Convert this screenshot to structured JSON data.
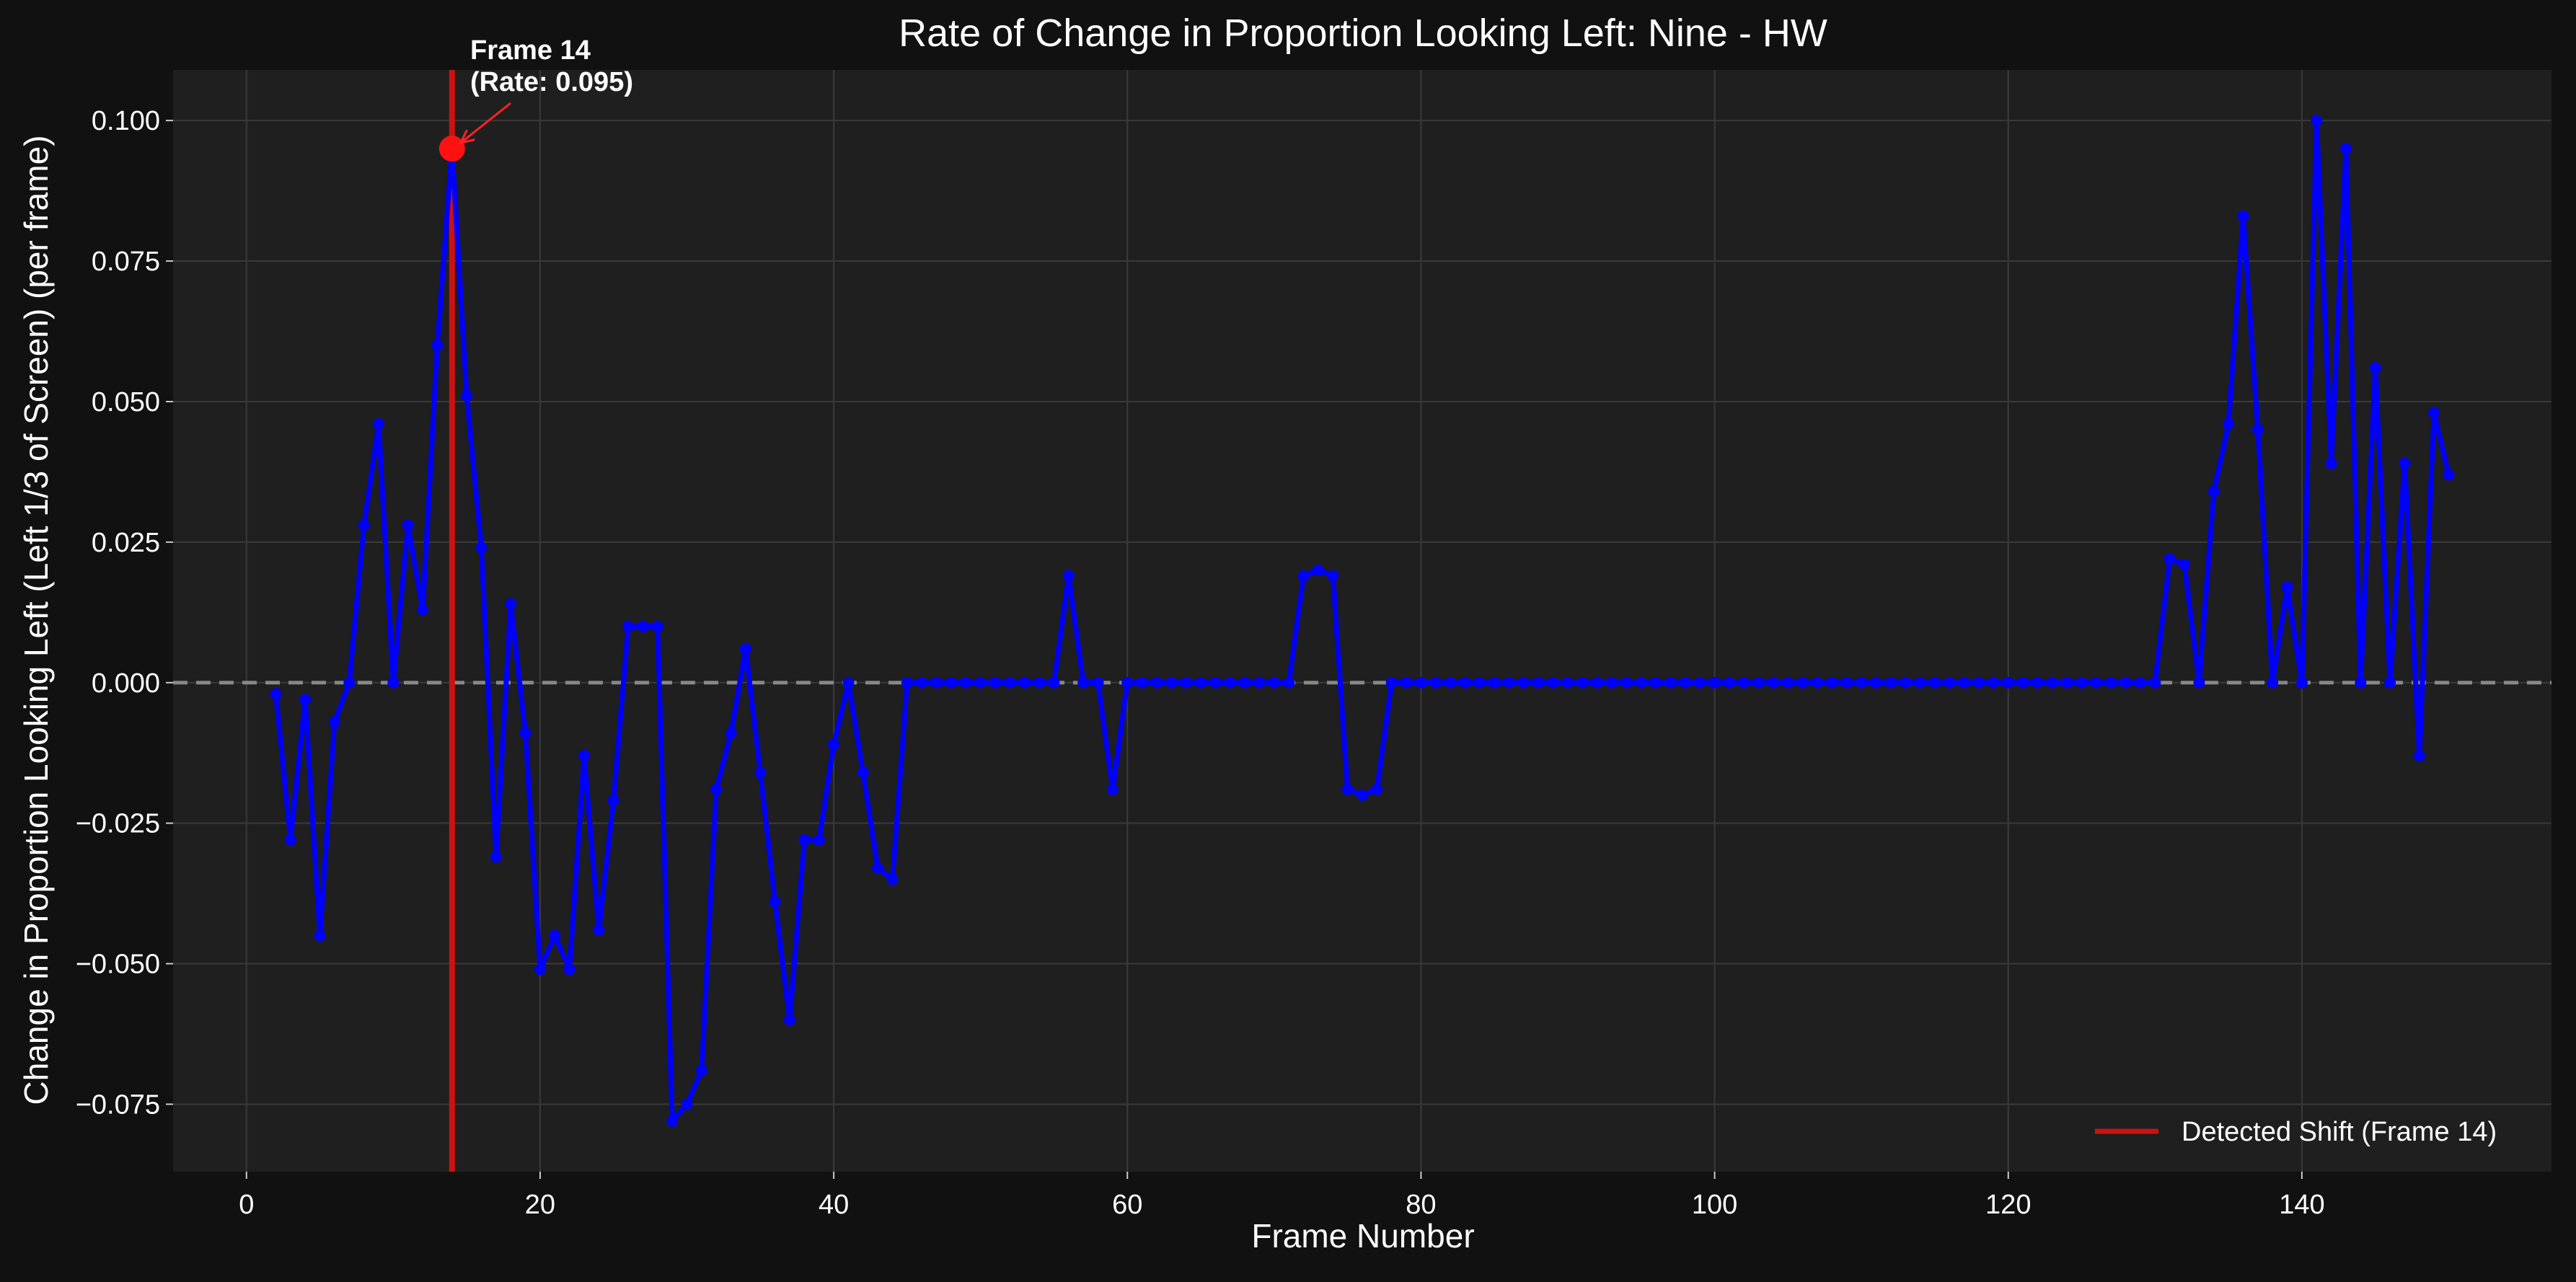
{
  "chart_data": {
    "type": "line",
    "title": "Rate of Change in Proportion Looking Left: Nine - HW",
    "xlabel": "Frame Number",
    "ylabel": "Change in Proportion Looking Left (Left 1/3 of Screen) (per frame)",
    "xlim": [
      -5,
      157
    ],
    "ylim": [
      -0.087,
      0.109
    ],
    "x_ticks": [
      0,
      20,
      40,
      60,
      80,
      100,
      120,
      140
    ],
    "x_tick_labels": [
      "0",
      "20",
      "40",
      "60",
      "80",
      "100",
      "120",
      "140"
    ],
    "y_ticks": [
      -0.075,
      -0.05,
      -0.025,
      0.0,
      0.025,
      0.05,
      0.075,
      0.1
    ],
    "y_tick_labels": [
      "−0.075",
      "−0.050",
      "−0.025",
      "0.000",
      "0.025",
      "0.050",
      "0.075",
      "0.100"
    ],
    "grid": true,
    "legend_position": "bottom-right",
    "reference_line": {
      "y": 0.0,
      "style": "dashed",
      "color": "#888888"
    },
    "series": [
      {
        "color": "#0000ff",
        "x": [
          2,
          3,
          4,
          5,
          6,
          7,
          8,
          9,
          10,
          11,
          12,
          13,
          14,
          15,
          16,
          17,
          18,
          19,
          20,
          21,
          22,
          23,
          24,
          25,
          26,
          27,
          28,
          29,
          30,
          31,
          32,
          33,
          34,
          35,
          36,
          37,
          38,
          39,
          40,
          41,
          42,
          43,
          44,
          45,
          46,
          47,
          48,
          49,
          50,
          51,
          52,
          53,
          54,
          55,
          56,
          57,
          58,
          59,
          60,
          61,
          62,
          63,
          64,
          65,
          66,
          67,
          68,
          69,
          70,
          71,
          72,
          73,
          74,
          75,
          76,
          77,
          78,
          79,
          80,
          81,
          82,
          83,
          84,
          85,
          86,
          87,
          88,
          89,
          90,
          91,
          92,
          93,
          94,
          95,
          96,
          97,
          98,
          99,
          100,
          101,
          102,
          103,
          104,
          105,
          106,
          107,
          108,
          109,
          110,
          111,
          112,
          113,
          114,
          115,
          116,
          117,
          118,
          119,
          120,
          121,
          122,
          123,
          124,
          125,
          126,
          127,
          128,
          129,
          130,
          131,
          132,
          133,
          134,
          135,
          136,
          137,
          138,
          139,
          140,
          141,
          142,
          143,
          144,
          145,
          146,
          147,
          148,
          149,
          150
        ],
        "y": [
          -0.002,
          -0.028,
          -0.003,
          -0.045,
          -0.007,
          0.0,
          0.028,
          0.046,
          0.0,
          0.028,
          0.013,
          0.06,
          0.095,
          0.051,
          0.024,
          -0.031,
          0.014,
          -0.009,
          -0.051,
          -0.045,
          -0.051,
          -0.013,
          -0.044,
          -0.021,
          0.01,
          0.01,
          0.01,
          -0.078,
          -0.075,
          -0.069,
          -0.019,
          -0.009,
          0.006,
          -0.016,
          -0.039,
          -0.06,
          -0.028,
          -0.028,
          -0.011,
          0.0,
          -0.016,
          -0.033,
          -0.035,
          0.0,
          0.0,
          0.0,
          0.0,
          0.0,
          0.0,
          0.0,
          0.0,
          0.0,
          0.0,
          0.0,
          0.019,
          0.0,
          0.0,
          -0.019,
          0.0,
          0.0,
          0.0,
          0.0,
          0.0,
          0.0,
          0.0,
          0.0,
          0.0,
          0.0,
          0.0,
          0.0,
          0.019,
          0.02,
          0.019,
          -0.019,
          -0.02,
          -0.019,
          0.0,
          0.0,
          0.0,
          0.0,
          0.0,
          0.0,
          0.0,
          0.0,
          0.0,
          0.0,
          0.0,
          0.0,
          0.0,
          0.0,
          0.0,
          0.0,
          0.0,
          0.0,
          0.0,
          0.0,
          0.0,
          0.0,
          0.0,
          0.0,
          0.0,
          0.0,
          0.0,
          0.0,
          0.0,
          0.0,
          0.0,
          0.0,
          0.0,
          0.0,
          0.0,
          0.0,
          0.0,
          0.0,
          0.0,
          0.0,
          0.0,
          0.0,
          0.0,
          0.0,
          0.0,
          0.0,
          0.0,
          0.0,
          0.0,
          0.0,
          0.0,
          0.0,
          0.0,
          0.022,
          0.021,
          0.0,
          0.034,
          0.046,
          0.083,
          0.045,
          0.0,
          0.017,
          0.0,
          0.1,
          0.039,
          0.095,
          0.0,
          0.056,
          0.0,
          0.039,
          -0.013,
          0.048,
          0.037
        ]
      }
    ],
    "vertical_line": {
      "x": 14,
      "color": "#cc1111",
      "legend_label": "Detected Shift (Frame 14)"
    },
    "highlight_point": {
      "x": 14,
      "y": 0.095,
      "color": "#ff1111"
    },
    "annotation": {
      "line1": "Frame 14",
      "line2": "(Rate: 0.095)",
      "color": "#ffffff",
      "arrow_color": "#ff2222"
    },
    "legend": {
      "entries": [
        {
          "label": "Detected Shift (Frame 14)",
          "color": "#cc1111"
        }
      ]
    },
    "colors": {
      "figure_background": "#111111",
      "axes_background": "#1f1f1f",
      "grid": "#3a3a3a",
      "text": "#ffffff"
    }
  }
}
